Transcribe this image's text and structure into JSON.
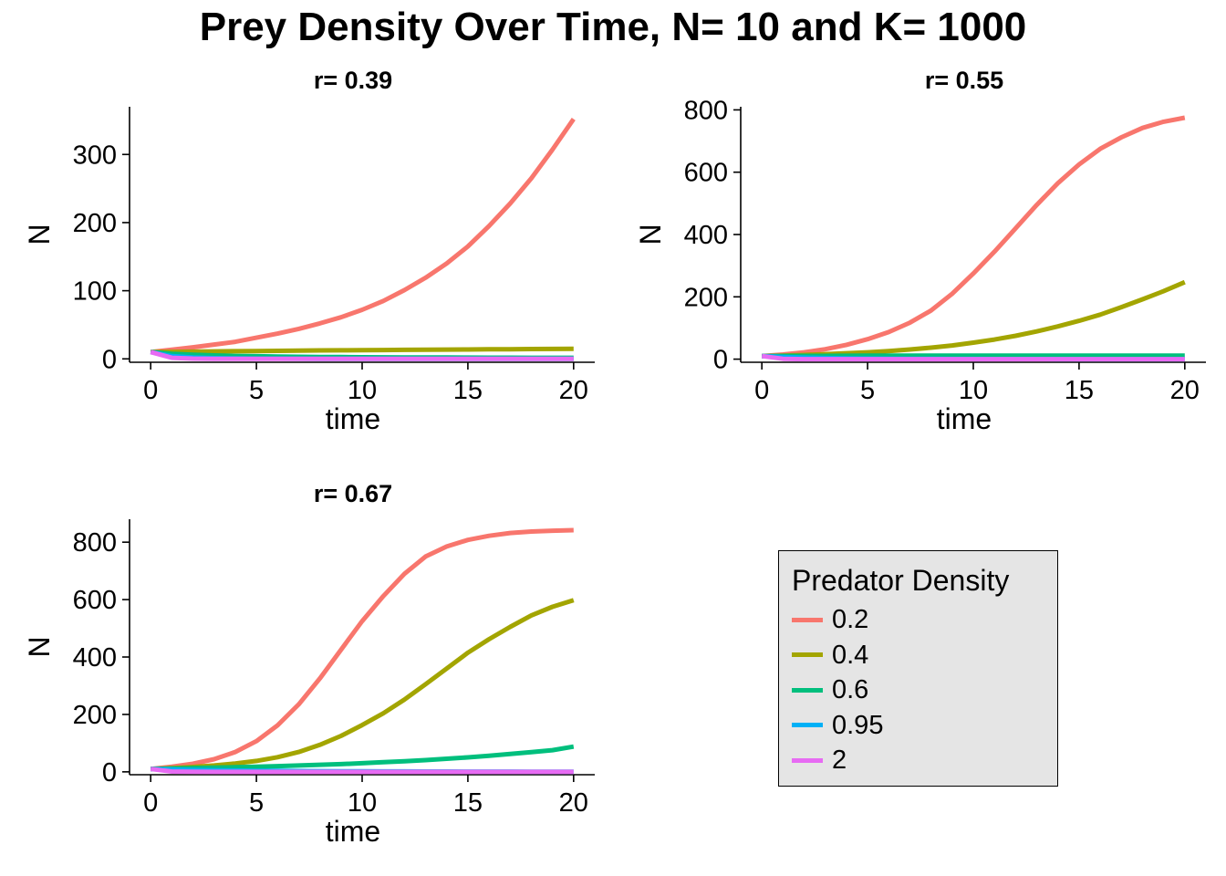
{
  "title": "Prey Density Over Time, N= 10 and K= 1000",
  "legend": {
    "title": "Predator Density",
    "items": [
      {
        "label": "0.2",
        "color": "#F8766D"
      },
      {
        "label": "0.4",
        "color": "#A3A500"
      },
      {
        "label": "0.6",
        "color": "#00BF7D"
      },
      {
        "label": "0.95",
        "color": "#00B0F6"
      },
      {
        "label": "2",
        "color": "#E76BF3"
      }
    ]
  },
  "chart_data": [
    {
      "type": "line",
      "title": "r= 0.39",
      "xlabel": "time",
      "ylabel": "N",
      "xlim": [
        -1,
        21
      ],
      "ylim": [
        -5,
        370
      ],
      "xticks": [
        0,
        5,
        10,
        15,
        20
      ],
      "yticks": [
        0,
        100,
        200,
        300
      ],
      "grid": false,
      "x": [
        0,
        1,
        2,
        3,
        4,
        5,
        6,
        7,
        8,
        9,
        10,
        11,
        12,
        13,
        14,
        15,
        16,
        17,
        18,
        19,
        20
      ],
      "series": [
        {
          "name": "0.2",
          "color": "#F8766D",
          "values": [
            10,
            13.5,
            17,
            21,
            25,
            31,
            37,
            44,
            52,
            61,
            72,
            85,
            101,
            119,
            140,
            165,
            195,
            228,
            265,
            307,
            352
          ]
        },
        {
          "name": "0.4",
          "color": "#A3A500",
          "values": [
            10,
            10.3,
            10.6,
            10.9,
            11.2,
            11.5,
            11.8,
            12.1,
            12.4,
            12.6,
            12.8,
            13.0,
            13.2,
            13.4,
            13.6,
            13.8,
            14.0,
            14.2,
            14.4,
            14.6,
            14.8
          ]
        },
        {
          "name": "0.6",
          "color": "#00BF7D",
          "values": [
            10,
            7.5,
            6,
            5,
            4.3,
            3.8,
            3.4,
            3.1,
            2.8,
            2.6,
            2.4,
            2.2,
            2.1,
            2.0,
            1.9,
            1.8,
            1.7,
            1.7,
            1.6,
            1.6,
            1.5
          ]
        },
        {
          "name": "0.95",
          "color": "#00B0F6",
          "values": [
            10,
            4,
            2,
            1,
            0.6,
            0.4,
            0.3,
            0.2,
            0.1,
            0.1,
            0,
            0,
            0,
            0,
            0,
            0,
            0,
            0,
            0,
            0,
            0
          ]
        },
        {
          "name": "2",
          "color": "#E76BF3",
          "values": [
            10,
            1.5,
            0.3,
            0,
            0,
            0,
            0,
            0,
            0,
            0,
            0,
            0,
            0,
            0,
            0,
            0,
            0,
            0,
            0,
            0,
            0
          ]
        }
      ]
    },
    {
      "type": "line",
      "title": "r= 0.55",
      "xlabel": "time",
      "ylabel": "N",
      "xlim": [
        -1,
        21
      ],
      "ylim": [
        -10,
        810
      ],
      "xticks": [
        0,
        5,
        10,
        15,
        20
      ],
      "yticks": [
        0,
        200,
        400,
        600,
        800
      ],
      "grid": false,
      "x": [
        0,
        1,
        2,
        3,
        4,
        5,
        6,
        7,
        8,
        9,
        10,
        11,
        12,
        13,
        14,
        15,
        16,
        17,
        18,
        19,
        20
      ],
      "series": [
        {
          "name": "0.2",
          "color": "#F8766D",
          "values": [
            10,
            15,
            22,
            32,
            46,
            64,
            87,
            117,
            156,
            210,
            275,
            345,
            420,
            495,
            565,
            625,
            675,
            712,
            742,
            762,
            775
          ]
        },
        {
          "name": "0.4",
          "color": "#A3A500",
          "values": [
            10,
            11.5,
            13.5,
            16,
            19,
            22,
            26,
            31,
            37,
            44,
            53,
            63,
            75,
            89,
            105,
            123,
            143,
            167,
            192,
            218,
            247
          ]
        },
        {
          "name": "0.6",
          "color": "#00BF7D",
          "values": [
            10,
            10.2,
            10.4,
            10.6,
            10.8,
            11,
            11.1,
            11.2,
            11.3,
            11.3,
            11.3,
            11.2,
            11.2,
            11.2,
            11.1,
            11.1,
            11.1,
            11.1,
            11.1,
            11.1,
            11.1
          ]
        },
        {
          "name": "0.95",
          "color": "#00B0F6",
          "values": [
            10,
            7,
            5,
            3.5,
            2.5,
            1.8,
            1.3,
            0.9,
            0.7,
            0.5,
            0.4,
            0.3,
            0.2,
            0.2,
            0.1,
            0.1,
            0.1,
            0,
            0,
            0,
            0
          ]
        },
        {
          "name": "2",
          "color": "#E76BF3",
          "values": [
            10,
            1,
            0.1,
            0,
            0,
            0,
            0,
            0,
            0,
            0,
            0,
            0,
            0,
            0,
            0,
            0,
            0,
            0,
            0,
            0,
            0
          ]
        }
      ]
    },
    {
      "type": "line",
      "title": "r= 0.67",
      "xlabel": "time",
      "ylabel": "N",
      "xlim": [
        -1,
        21
      ],
      "ylim": [
        -10,
        880
      ],
      "xticks": [
        0,
        5,
        10,
        15,
        20
      ],
      "yticks": [
        0,
        200,
        400,
        600,
        800
      ],
      "grid": false,
      "x": [
        0,
        1,
        2,
        3,
        4,
        5,
        6,
        7,
        8,
        9,
        10,
        11,
        12,
        13,
        14,
        15,
        16,
        17,
        18,
        19,
        20
      ],
      "series": [
        {
          "name": "0.2",
          "color": "#F8766D",
          "values": [
            10,
            18,
            28,
            44,
            69,
            107,
            162,
            235,
            325,
            425,
            525,
            612,
            690,
            750,
            785,
            808,
            822,
            832,
            837,
            840,
            842
          ]
        },
        {
          "name": "0.4",
          "color": "#A3A500",
          "values": [
            10,
            13,
            17,
            22,
            29,
            38,
            51,
            69,
            94,
            125,
            163,
            204,
            252,
            305,
            360,
            415,
            462,
            505,
            545,
            575,
            598
          ]
        },
        {
          "name": "0.6",
          "color": "#00BF7D",
          "values": [
            10,
            11.5,
            13,
            14.5,
            16,
            18,
            20,
            22,
            24.5,
            27,
            30,
            33.5,
            37,
            41,
            45.5,
            50.5,
            56,
            62,
            68.5,
            75.5,
            88
          ]
        },
        {
          "name": "0.95",
          "color": "#00B0F6",
          "values": [
            10,
            8,
            6.5,
            5.5,
            4.5,
            3.8,
            3.2,
            2.7,
            2.3,
            2,
            1.7,
            1.5,
            1.3,
            1.1,
            1,
            0.9,
            0.8,
            0.7,
            0.6,
            0.5,
            0.5
          ]
        },
        {
          "name": "2",
          "color": "#E76BF3",
          "values": [
            10,
            1.2,
            0.2,
            0,
            0,
            0,
            0,
            0,
            0,
            0,
            0,
            0,
            0,
            0,
            0,
            0,
            0,
            0,
            0,
            0,
            0
          ]
        }
      ]
    }
  ]
}
